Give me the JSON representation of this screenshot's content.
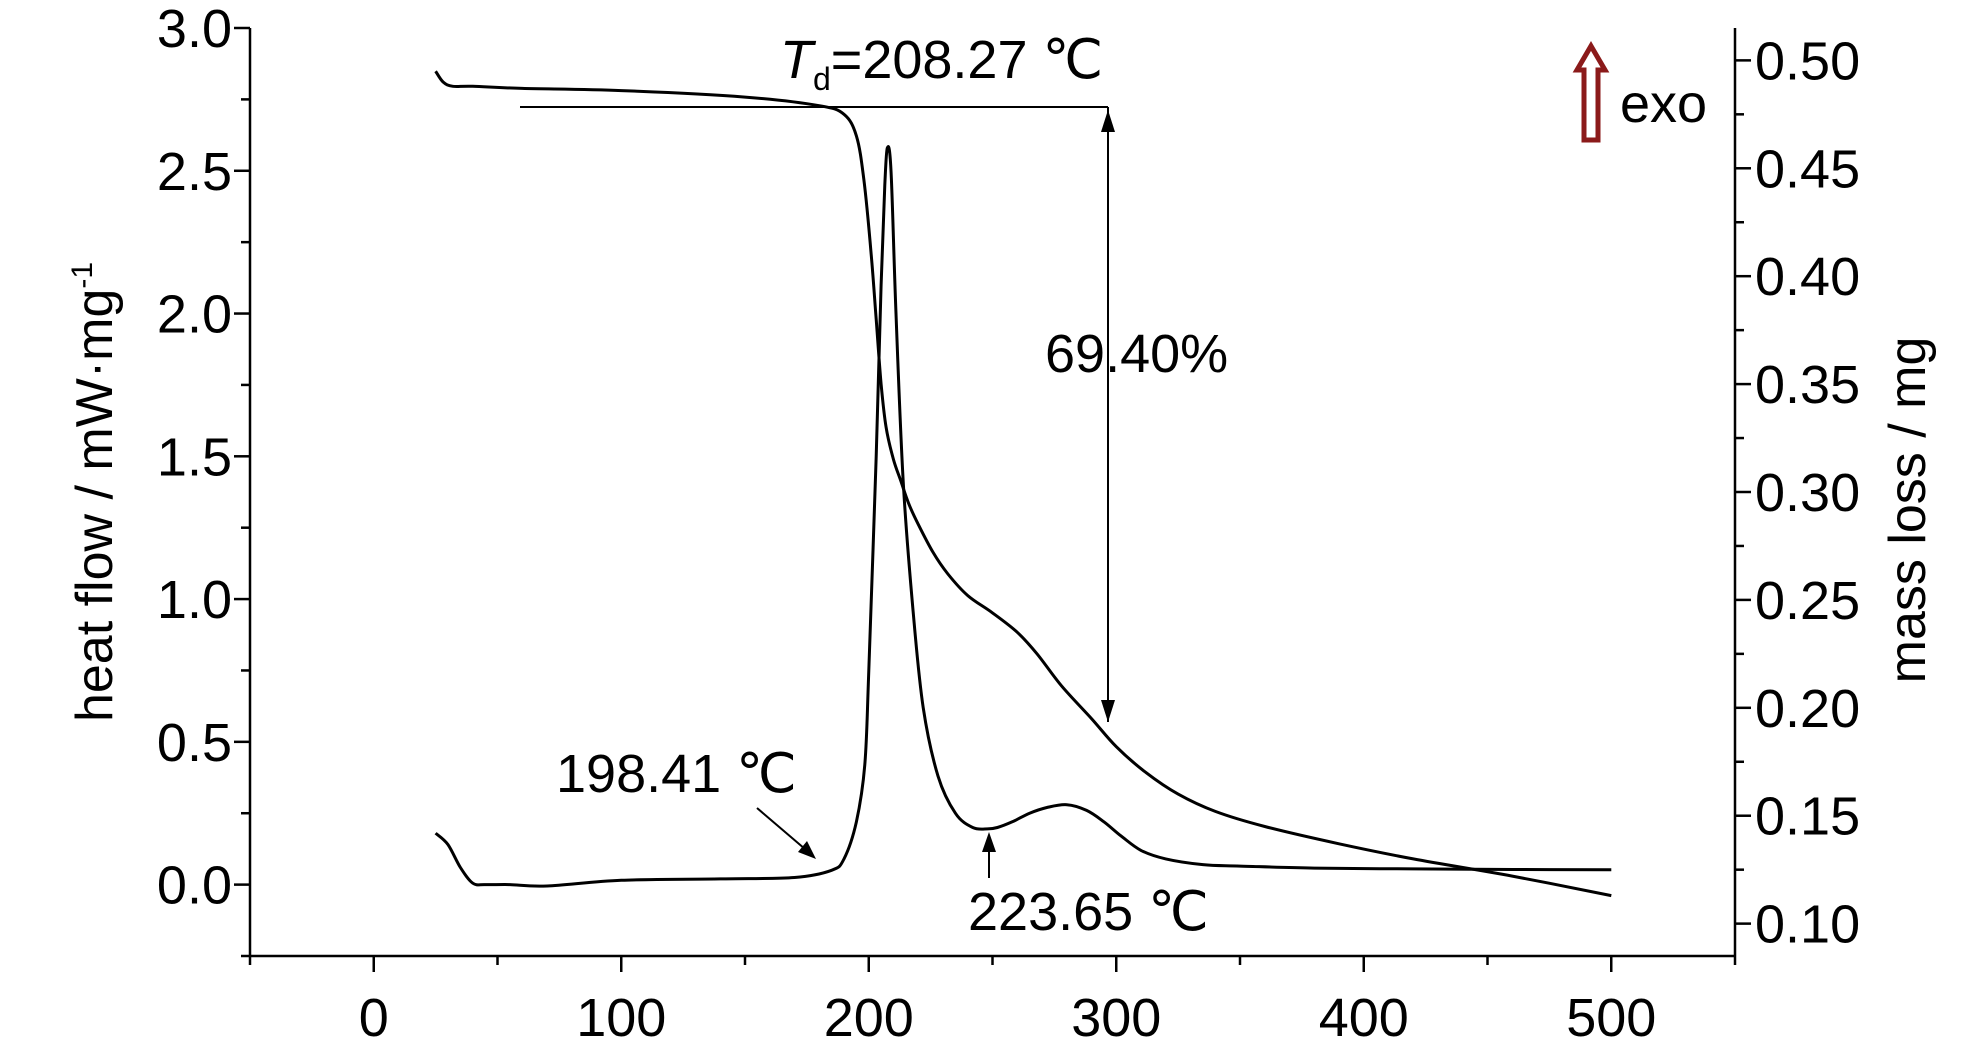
{
  "chart_data": {
    "type": "line",
    "x_axis": {
      "range": [
        -50,
        550
      ],
      "ticks": [
        0,
        100,
        200,
        300,
        400,
        500
      ],
      "tick_labels": [
        "0",
        "100",
        "200",
        "300",
        "400",
        "500"
      ],
      "label": ""
    },
    "y_axis_left": {
      "label": "heat flow / mW·mg",
      "label_superscript": "-1",
      "range": [
        -0.25,
        3.0
      ],
      "ticks": [
        0.0,
        0.5,
        1.0,
        1.5,
        2.0,
        2.5,
        3.0
      ],
      "tick_labels": [
        "0.0",
        "0.5",
        "1.0",
        "1.5",
        "2.0",
        "2.5",
        "3.0"
      ]
    },
    "y_axis_right": {
      "label": "mass loss / mg",
      "range": [
        0.085,
        0.515
      ],
      "ticks": [
        0.1,
        0.15,
        0.2,
        0.25,
        0.3,
        0.35,
        0.4,
        0.45,
        0.5
      ],
      "tick_labels": [
        "0.10",
        "0.15",
        "0.20",
        "0.25",
        "0.30",
        "0.35",
        "0.40",
        "0.45",
        "0.50"
      ]
    },
    "series": [
      {
        "axis": "left",
        "color": "#000000",
        "x": [
          25,
          30,
          35,
          40,
          45,
          55,
          70,
          100,
          140,
          170,
          185,
          190,
          195,
          198.4,
          200,
          203,
          205,
          206.5,
          207.5,
          209,
          211,
          214,
          218,
          222,
          228,
          235,
          242,
          248,
          252,
          258,
          265,
          272,
          280,
          288,
          295,
          302,
          310,
          320,
          335,
          350,
          380,
          420,
          460,
          500
        ],
        "y": [
          0.18,
          0.14,
          0.06,
          0.005,
          0.0,
          0.0,
          -0.005,
          0.015,
          0.02,
          0.025,
          0.05,
          0.09,
          0.22,
          0.42,
          0.75,
          1.5,
          2.1,
          2.45,
          2.58,
          2.5,
          2.0,
          1.4,
          0.95,
          0.62,
          0.38,
          0.25,
          0.2,
          0.195,
          0.2,
          0.22,
          0.25,
          0.27,
          0.28,
          0.26,
          0.22,
          0.17,
          0.12,
          0.09,
          0.07,
          0.065,
          0.058,
          0.055,
          0.053,
          0.052
        ]
      },
      {
        "axis": "right",
        "color": "#000000",
        "x": [
          25,
          28,
          32,
          40,
          60,
          100,
          150,
          180,
          190,
          195,
          198,
          201,
          203,
          205,
          207,
          210,
          213,
          216,
          220,
          226,
          232,
          240,
          250,
          260,
          268,
          278,
          290,
          300,
          312,
          325,
          340,
          360,
          390,
          420,
          460,
          500
        ],
        "y": [
          0.495,
          0.49,
          0.488,
          0.488,
          0.487,
          0.486,
          0.483,
          0.479,
          0.475,
          0.465,
          0.445,
          0.41,
          0.38,
          0.35,
          0.33,
          0.315,
          0.305,
          0.295,
          0.285,
          0.272,
          0.262,
          0.252,
          0.244,
          0.235,
          0.225,
          0.21,
          0.195,
          0.182,
          0.17,
          0.16,
          0.152,
          0.145,
          0.137,
          0.13,
          0.122,
          0.113
        ]
      }
    ],
    "annotations": {
      "td_label_italic": "T",
      "td_label_subscript": "d",
      "td_label_rest": "=208.27 ℃",
      "mass_loss_label": "69.40%",
      "onset_label": "198.41 ℃",
      "valley_label": "223.65 ℃",
      "exo_label": "exo"
    }
  },
  "colors": {
    "exo_arrow": "#8b1a1a",
    "lines": "#000000"
  }
}
